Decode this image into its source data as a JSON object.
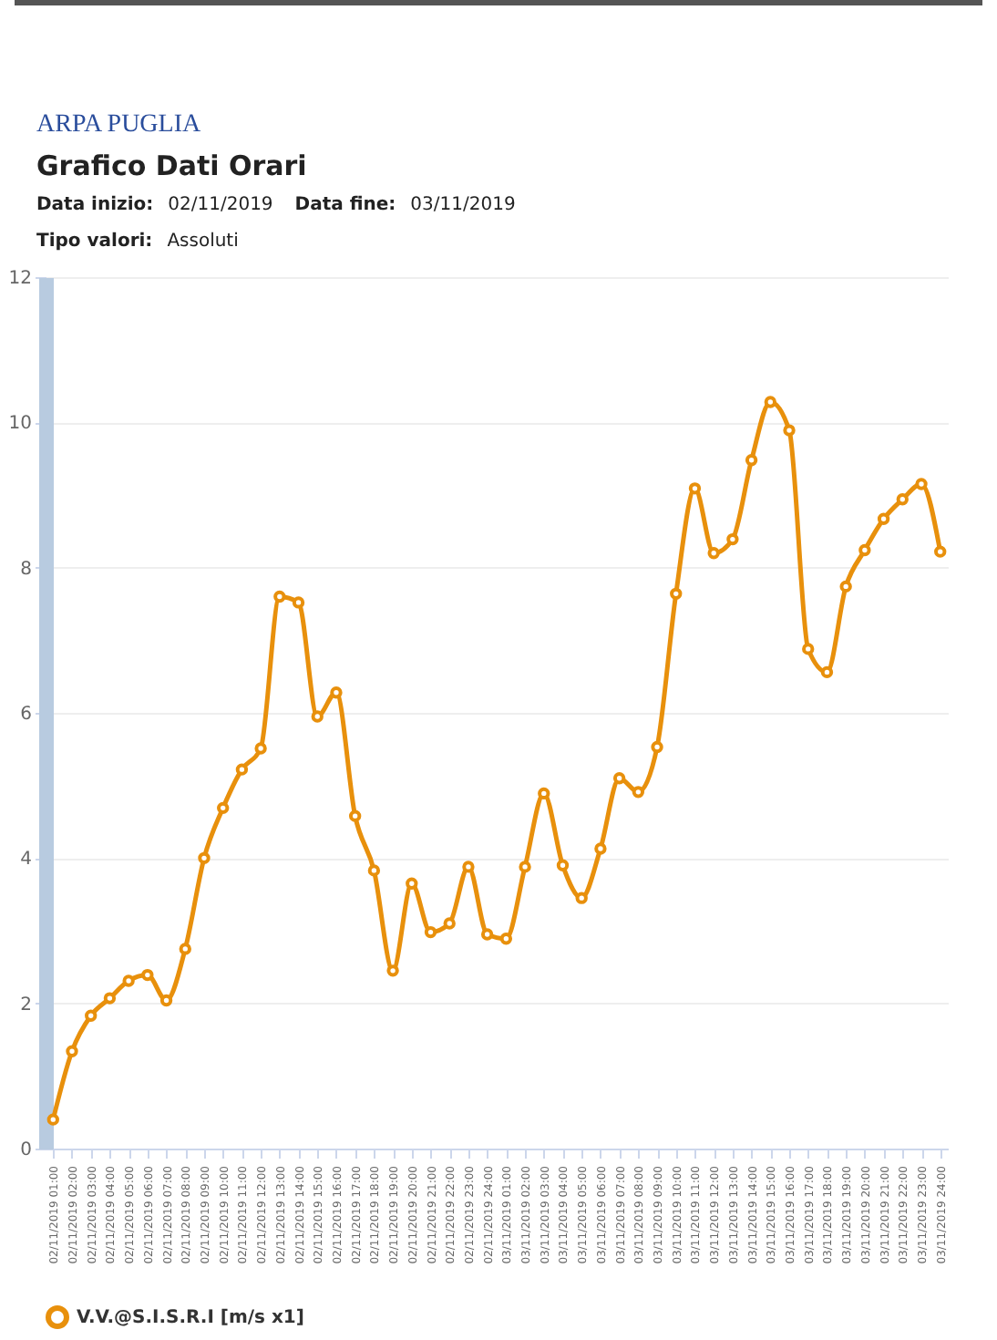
{
  "chart_data": {
    "type": "line",
    "title": "Grafico Dati Orari",
    "annotations": [
      "ARPA PUGLIA",
      "Data inizio: 02/11/2019",
      "Data fine: 03/11/2019",
      "Tipo valori: Assoluti"
    ],
    "categories": [
      "02/11/2019 01:00",
      "02/11/2019 02:00",
      "02/11/2019 03:00",
      "02/11/2019 04:00",
      "02/11/2019 05:00",
      "02/11/2019 06:00",
      "02/11/2019 07:00",
      "02/11/2019 08:00",
      "02/11/2019 09:00",
      "02/11/2019 10:00",
      "02/11/2019 11:00",
      "02/11/2019 12:00",
      "02/11/2019 13:00",
      "02/11/2019 14:00",
      "02/11/2019 15:00",
      "02/11/2019 16:00",
      "02/11/2019 17:00",
      "02/11/2019 18:00",
      "02/11/2019 19:00",
      "02/11/2019 20:00",
      "02/11/2019 21:00",
      "02/11/2019 22:00",
      "02/11/2019 23:00",
      "02/11/2019 24:00",
      "03/11/2019 01:00",
      "03/11/2019 02:00",
      "03/11/2019 03:00",
      "03/11/2019 04:00",
      "03/11/2019 05:00",
      "03/11/2019 06:00",
      "03/11/2019 07:00",
      "03/11/2019 08:00",
      "03/11/2019 09:00",
      "03/11/2019 10:00",
      "03/11/2019 11:00",
      "03/11/2019 12:00",
      "03/11/2019 13:00",
      "03/11/2019 14:00",
      "03/11/2019 15:00",
      "03/11/2019 16:00",
      "03/11/2019 17:00",
      "03/11/2019 18:00",
      "03/11/2019 19:00",
      "03/11/2019 20:00",
      "03/11/2019 21:00",
      "03/11/2019 22:00",
      "03/11/2019 23:00",
      "03/11/2019 24:00"
    ],
    "series": [
      {
        "name": "V.V.@S.I.S.R.I [m/s x1]",
        "color": "#e8900c",
        "values": [
          0.4,
          1.34,
          1.83,
          2.07,
          2.31,
          2.39,
          2.04,
          2.75,
          4.0,
          4.69,
          5.22,
          5.51,
          7.6,
          7.52,
          5.95,
          6.28,
          4.58,
          3.83,
          2.45,
          3.65,
          2.98,
          3.1,
          3.88,
          2.95,
          2.89,
          3.88,
          4.89,
          3.9,
          3.45,
          4.13,
          5.1,
          4.91,
          5.53,
          7.64,
          9.09,
          8.2,
          8.39,
          9.48,
          10.28,
          9.89,
          6.88,
          6.56,
          7.74,
          8.24,
          8.67,
          8.94,
          9.15,
          8.22
        ]
      }
    ],
    "ylim": [
      0,
      12
    ],
    "yticks": [
      0,
      2,
      4,
      6,
      8,
      10,
      12
    ],
    "grid": "y",
    "legend": "bottom",
    "marker": "circle",
    "line_style": "solid"
  }
}
